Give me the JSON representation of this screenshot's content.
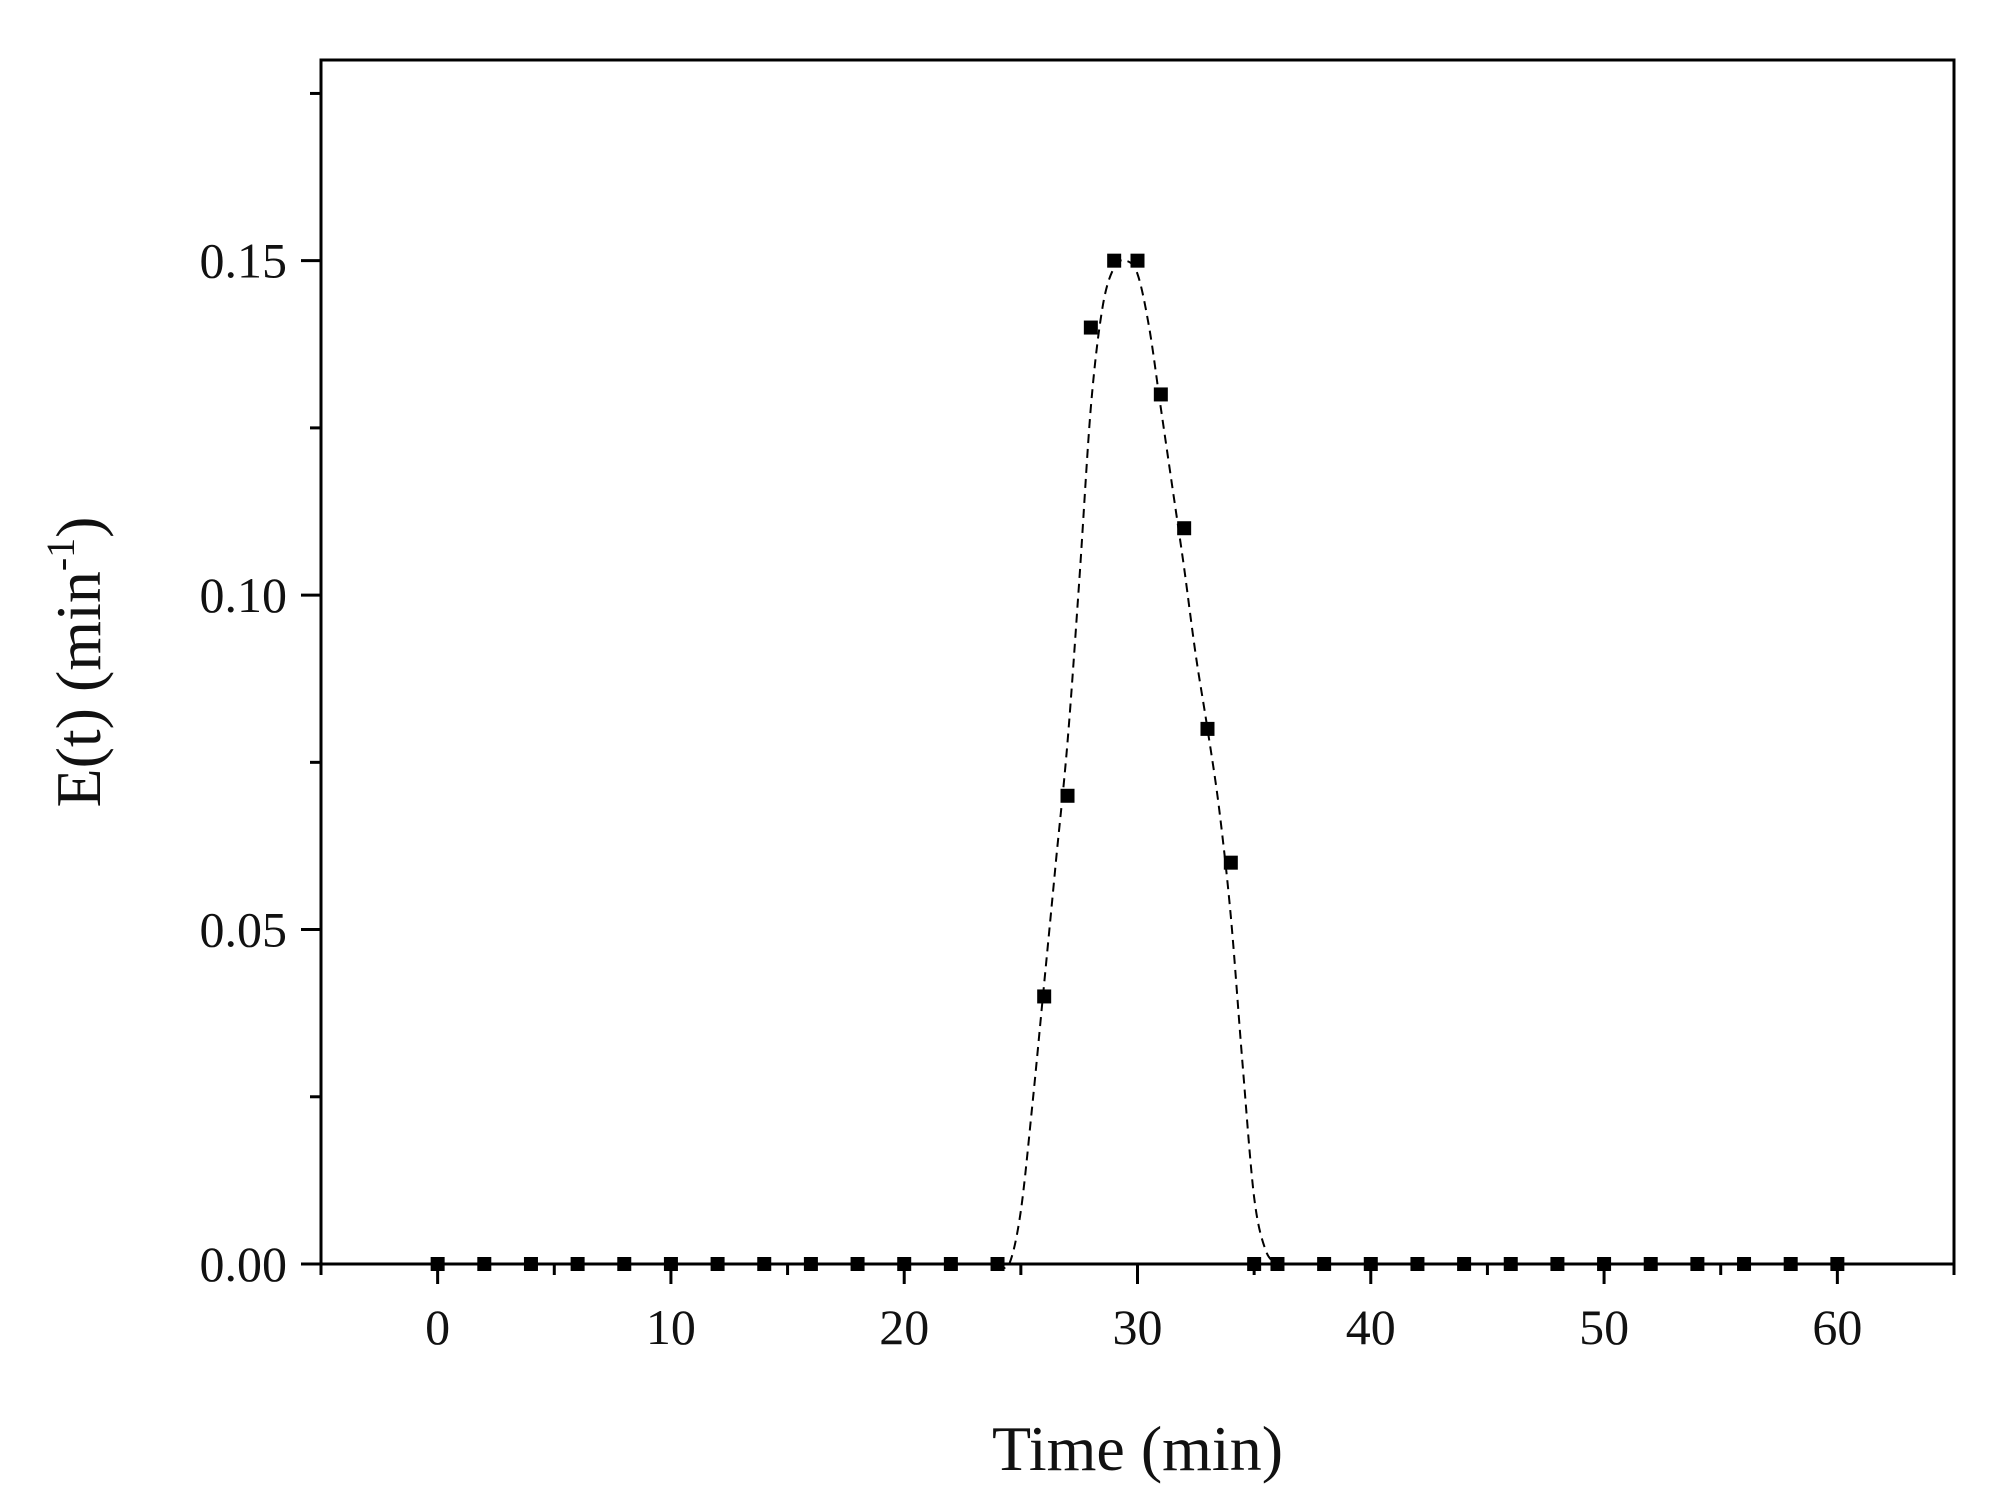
{
  "chart_data": {
    "type": "scatter",
    "title": "",
    "xlabel": "Time (min)",
    "ylabel_main": "E(t) (min",
    "ylabel_sup": "-1",
    "ylabel_close": ")",
    "xlim": [
      -5,
      65
    ],
    "ylim": [
      0,
      0.18
    ],
    "x_ticks": [
      0,
      10,
      20,
      30,
      40,
      50,
      60
    ],
    "x_tick_labels": [
      "0",
      "10",
      "20",
      "30",
      "40",
      "50",
      "60"
    ],
    "x_minor_ticks": [
      -5,
      5,
      15,
      25,
      35,
      45,
      55,
      65
    ],
    "y_ticks": [
      0,
      0.05,
      0.1,
      0.15
    ],
    "y_tick_labels": [
      "0.00",
      "0.05",
      "0.10",
      "0.15"
    ],
    "y_minor_ticks": [
      0.025,
      0.075,
      0.125,
      0.175
    ],
    "grid": false,
    "series": [
      {
        "marker": "square",
        "color": "#000000",
        "x": [
          0,
          2,
          4,
          6,
          8,
          10,
          12,
          14,
          16,
          18,
          20,
          22,
          24,
          26,
          27,
          28,
          29,
          30,
          31,
          32,
          33,
          34,
          35,
          36,
          38,
          40,
          42,
          44,
          46,
          48,
          50,
          52,
          54,
          56,
          58,
          60
        ],
        "y": [
          0,
          0,
          0,
          0,
          0,
          0,
          0,
          0,
          0,
          0,
          0,
          0,
          0,
          0.04,
          0.07,
          0.14,
          0.15,
          0.15,
          0.13,
          0.11,
          0.08,
          0.06,
          0,
          0,
          0,
          0,
          0,
          0,
          0,
          0,
          0,
          0,
          0,
          0,
          0,
          0
        ]
      }
    ],
    "fit_curve": {
      "style": "dashed",
      "color": "#000000",
      "x": [
        24.0,
        24.5,
        25.0,
        25.5,
        26.0,
        26.5,
        27.0,
        27.5,
        28.0,
        28.5,
        29.0,
        29.5,
        30.0,
        30.5,
        31.0,
        31.5,
        32.0,
        32.5,
        33.0,
        33.5,
        34.0,
        34.5,
        35.0,
        35.5,
        36.0
      ],
      "y": [
        0.0,
        0.0,
        0.008,
        0.024,
        0.042,
        0.06,
        0.078,
        0.102,
        0.128,
        0.143,
        0.149,
        0.15,
        0.148,
        0.14,
        0.128,
        0.116,
        0.104,
        0.091,
        0.08,
        0.068,
        0.052,
        0.03,
        0.01,
        0.002,
        0.0
      ]
    }
  }
}
